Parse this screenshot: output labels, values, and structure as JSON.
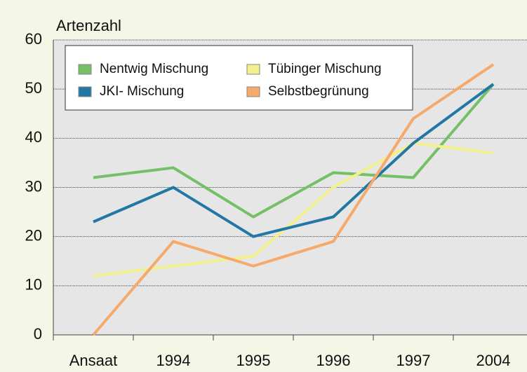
{
  "chart_data": {
    "type": "line",
    "y_label": "Artenzahl",
    "categories": [
      "Ansaat",
      "1994",
      "1995",
      "1996",
      "1997",
      "2004"
    ],
    "series": [
      {
        "name": "Nentwig Mischung",
        "color": "#74c066",
        "values": [
          32,
          34,
          24,
          33,
          32,
          51
        ]
      },
      {
        "name": "Tübinger Mischung",
        "color": "#f2f08c",
        "values": [
          12,
          14,
          16,
          30,
          39,
          37
        ]
      },
      {
        "name": "JKI- Mischung",
        "color": "#2277a4",
        "values": [
          23,
          30,
          20,
          24,
          39,
          51
        ]
      },
      {
        "name": "Selbstbegrünung",
        "color": "#f5a96a",
        "values": [
          0,
          19,
          14,
          19,
          44,
          55
        ]
      }
    ],
    "ylim": [
      0,
      60
    ],
    "yticks": [
      0,
      10,
      20,
      30,
      40,
      50,
      60
    ],
    "grid": true
  }
}
